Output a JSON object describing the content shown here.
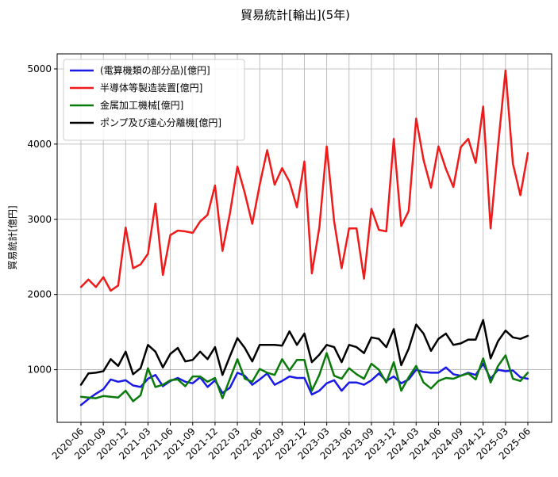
{
  "chart_data": {
    "type": "line",
    "title": "貿易統計[輸出](5年)",
    "xlabel": "",
    "ylabel": "貿易統計[億円]",
    "ylim": [
      300,
      5200
    ],
    "yticks": [
      1000,
      2000,
      3000,
      4000,
      5000
    ],
    "grid": true,
    "legend_position": "top-left",
    "x": [
      "2020-06",
      "2020-07",
      "2020-08",
      "2020-09",
      "2020-10",
      "2020-11",
      "2020-12",
      "2021-01",
      "2021-02",
      "2021-03",
      "2021-04",
      "2021-05",
      "2021-06",
      "2021-07",
      "2021-08",
      "2021-09",
      "2021-10",
      "2021-11",
      "2021-12",
      "2022-01",
      "2022-02",
      "2022-03",
      "2022-04",
      "2022-05",
      "2022-06",
      "2022-07",
      "2022-08",
      "2022-09",
      "2022-10",
      "2022-11",
      "2022-12",
      "2023-01",
      "2023-02",
      "2023-03",
      "2023-04",
      "2023-05",
      "2023-06",
      "2023-07",
      "2023-08",
      "2023-09",
      "2023-10",
      "2023-11",
      "2023-12",
      "2024-01",
      "2024-02",
      "2024-03",
      "2024-04",
      "2024-05",
      "2024-06",
      "2024-07",
      "2024-08",
      "2024-09",
      "2024-10",
      "2024-11",
      "2024-12",
      "2025-01",
      "2025-02",
      "2025-03",
      "2025-04",
      "2025-05",
      "2025-06"
    ],
    "xtick_labels": [
      "2020-06",
      "2020-09",
      "2020-12",
      "2021-03",
      "2021-06",
      "2021-09",
      "2021-12",
      "2022-03",
      "2022-06",
      "2022-09",
      "2022-12",
      "2023-03",
      "2023-06",
      "2023-09",
      "2023-12",
      "2024-03",
      "2024-06",
      "2024-09",
      "2024-12",
      "2025-03",
      "2025-06"
    ],
    "series": [
      {
        "name": "(電算機類の部分品)[億円]",
        "color": "#1a1ae6",
        "values": [
          530,
          610,
          680,
          740,
          870,
          840,
          860,
          790,
          770,
          880,
          930,
          780,
          850,
          890,
          840,
          820,
          900,
          770,
          860,
          690,
          760,
          960,
          920,
          800,
          870,
          950,
          800,
          850,
          910,
          890,
          890,
          670,
          720,
          820,
          860,
          720,
          830,
          830,
          800,
          860,
          950,
          850,
          910,
          820,
          870,
          1000,
          970,
          960,
          960,
          1030,
          940,
          920,
          960,
          930,
          1080,
          880,
          1000,
          980,
          990,
          900,
          880
        ],
        "color_hint": "blue"
      },
      {
        "name": "半導体等製造装置[億円]",
        "color": "#f01a1a",
        "values": [
          2100,
          2200,
          2100,
          2230,
          2050,
          2120,
          2890,
          2350,
          2400,
          2540,
          3210,
          2260,
          2790,
          2850,
          2840,
          2820,
          2970,
          3060,
          3450,
          2580,
          3080,
          3700,
          3350,
          2940,
          3460,
          3920,
          3460,
          3680,
          3500,
          3160,
          3770,
          2280,
          2890,
          3970,
          2970,
          2350,
          2880,
          2880,
          2210,
          3140,
          2860,
          2840,
          4070,
          2910,
          3110,
          4340,
          3790,
          3420,
          3970,
          3670,
          3430,
          3960,
          4070,
          3750,
          4500,
          2880,
          3980,
          4980,
          3740,
          3320,
          3880
        ]
      },
      {
        "name": "金属加工機械[億円]",
        "color": "#0a7a0a",
        "values": [
          640,
          630,
          620,
          650,
          640,
          630,
          720,
          580,
          660,
          1020,
          770,
          800,
          860,
          870,
          780,
          910,
          910,
          840,
          890,
          620,
          880,
          1140,
          880,
          840,
          1010,
          960,
          930,
          1140,
          990,
          1130,
          1130,
          720,
          930,
          1220,
          920,
          880,
          1020,
          940,
          880,
          1080,
          1000,
          830,
          1100,
          720,
          900,
          1050,
          830,
          750,
          850,
          890,
          880,
          920,
          950,
          870,
          1150,
          830,
          1050,
          1190,
          880,
          850,
          960
        ]
      },
      {
        "name": "ポンプ及び遠心分離機[億円]",
        "color": "#000000",
        "values": [
          800,
          950,
          960,
          980,
          1140,
          1050,
          1240,
          940,
          1020,
          1330,
          1240,
          1030,
          1210,
          1290,
          1110,
          1130,
          1240,
          1140,
          1300,
          930,
          1180,
          1420,
          1290,
          1110,
          1330,
          1330,
          1330,
          1320,
          1510,
          1330,
          1480,
          1100,
          1200,
          1330,
          1300,
          1100,
          1330,
          1300,
          1220,
          1430,
          1410,
          1300,
          1540,
          1060,
          1280,
          1600,
          1480,
          1250,
          1410,
          1480,
          1330,
          1350,
          1400,
          1400,
          1660,
          1150,
          1380,
          1520,
          1430,
          1410,
          1450
        ]
      }
    ]
  }
}
